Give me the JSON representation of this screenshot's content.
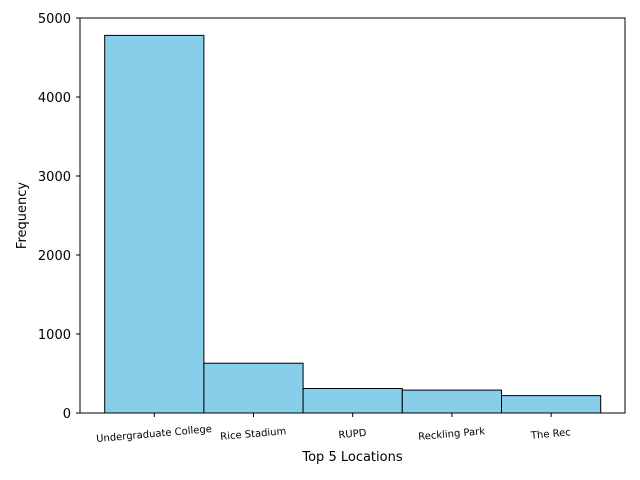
{
  "chart_data": {
    "type": "bar",
    "title": "",
    "xlabel": "Top 5 Locations",
    "ylabel": "Frequency",
    "categories": [
      "Undergraduate College",
      "Rice Stadium",
      "RUPD",
      "Reckling Park",
      "The Rec"
    ],
    "values": [
      4780,
      630,
      310,
      290,
      220
    ],
    "ylim": [
      0,
      5000
    ],
    "yticks": [
      0,
      1000,
      2000,
      3000,
      4000,
      5000
    ],
    "grid": false,
    "legend": "none",
    "colors": {
      "bar_fill": "#87CEEB",
      "bar_edge": "#000000",
      "axis": "#000000"
    }
  }
}
